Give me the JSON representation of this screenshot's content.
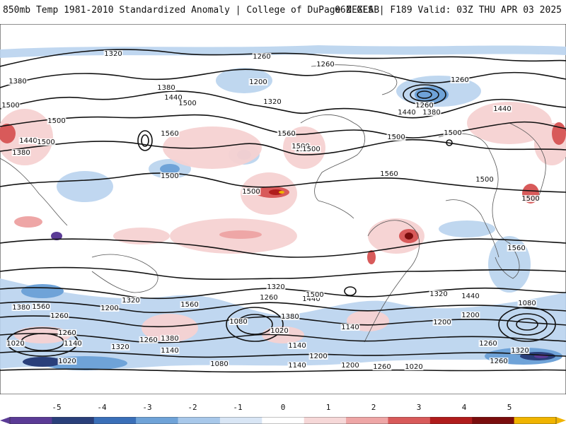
{
  "header": {
    "title": "850mb Temp 1981-2010 Standardized Anomaly | College of DuPage NEXLAB",
    "run_info": "06Z GFS | F189 Valid: 03Z THU APR 03 2025"
  },
  "colorbar": {
    "labels": [
      "-5",
      "-4",
      "-3",
      "-2",
      "-1",
      "0",
      "1",
      "2",
      "3",
      "4",
      "5"
    ],
    "colors": [
      "#5b3b96",
      "#2a3f7a",
      "#3a6fb8",
      "#6fa3d8",
      "#a8c8ea",
      "#d9e6f5",
      "#ffffff",
      "#f6d8d8",
      "#eea6a6",
      "#d85a5a",
      "#b01c1c",
      "#7a0d0d",
      "#f0b400"
    ]
  },
  "map": {
    "height_contour_labels": [
      "1320",
      "1260",
      "1260",
      "1260",
      "1380",
      "1380",
      "1440",
      "1200",
      "1320",
      "1440",
      "1380",
      "1260",
      "1500",
      "1560",
      "1500",
      "1500",
      "1440",
      "1380",
      "1500",
      "1560",
      "1500",
      "1500",
      "1500",
      "1500",
      "1500",
      "1440",
      "1500",
      "1560",
      "1500",
      "1500",
      "1500",
      "1560",
      "1320",
      "1260",
      "1440",
      "1560",
      "1380",
      "1200",
      "1320",
      "1260",
      "1560",
      "1380",
      "1260",
      "1140",
      "1020",
      "1080",
      "1020",
      "1380",
      "1500",
      "1320",
      "1140",
      "1260",
      "1020",
      "1140",
      "1200",
      "1140",
      "1200",
      "1080",
      "1200",
      "1080",
      "1260",
      "1020",
      "1260",
      "1320",
      "1440",
      "1320",
      "1260",
      "1140",
      "1200"
    ]
  }
}
